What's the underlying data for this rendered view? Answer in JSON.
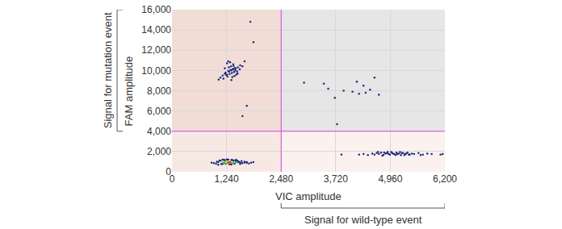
{
  "chart_data": {
    "type": "scatter",
    "x_label": "VIC amplitude",
    "y_label": "FAM amplitude",
    "annotations": [
      {
        "text": "Signal for mutation event",
        "axis": "y",
        "from": 4000,
        "to": 16000
      },
      {
        "text": "Signal for wild-type event",
        "axis": "x",
        "from": 2480,
        "to": 6200
      }
    ],
    "thresholds": {
      "x": 2480,
      "y": 4000
    },
    "xlim": [
      0,
      6200
    ],
    "ylim": [
      0,
      16000
    ],
    "xticks": [
      0,
      {
        "value": 1240,
        "label": "1,240"
      },
      {
        "value": 2480,
        "label": "2,480"
      },
      {
        "value": 3720,
        "label": "3,720"
      },
      {
        "value": 4960,
        "label": "4,960"
      },
      {
        "value": 6200,
        "label": "6,200"
      }
    ],
    "yticks": [
      0,
      {
        "value": 2000,
        "label": "2,000"
      },
      {
        "value": 4000,
        "label": "4,000"
      },
      {
        "value": 6000,
        "label": "6,000"
      },
      {
        "value": 8000,
        "label": "8,000"
      },
      {
        "value": 10000,
        "label": "10,000"
      },
      {
        "value": 12000,
        "label": "12,000"
      },
      {
        "value": 14000,
        "label": "14,000"
      },
      {
        "value": 16000,
        "label": "16,000"
      }
    ],
    "grid": true,
    "marker": "circle",
    "series": [
      {
        "color": "#1f2a80",
        "x": [
          1100,
          1150,
          1200,
          1250,
          1300,
          1350,
          1400,
          1450,
          1500,
          1550,
          1220,
          1280,
          1330,
          1380,
          1430,
          1480,
          1260,
          1310,
          1360,
          1410,
          1170,
          1230,
          1290,
          1340,
          1390,
          1440,
          1490,
          1540,
          1320,
          1370,
          1420,
          1200,
          1250,
          1600,
          1060,
          1650,
          1460,
          1350,
          1280,
          1400
        ],
        "y": [
          9300,
          9500,
          9700,
          9600,
          9900,
          10000,
          10100,
          10200,
          10300,
          10500,
          9800,
          9950,
          10050,
          10150,
          10250,
          9900,
          9400,
          9650,
          9750,
          9850,
          9200,
          9550,
          10300,
          10400,
          10600,
          10000,
          9700,
          10100,
          10800,
          9350,
          9450,
          10200,
          10700,
          10400,
          9100,
          10900,
          9600,
          9050,
          10900,
          10450
        ]
      },
      {
        "color": "#1f2a80",
        "x": [
          950,
          1000,
          1050,
          1100,
          1150,
          1200,
          1250,
          1300,
          1350,
          1400,
          1450,
          1500,
          1550,
          1600,
          1650,
          1700,
          1750,
          1800,
          1020,
          1080,
          1120,
          1180,
          1220,
          1280,
          1320,
          1380,
          1420,
          1480,
          1520,
          1580,
          1050,
          1150,
          1350,
          1450,
          1550,
          1250,
          1650,
          1700,
          900,
          1850
        ],
        "y": [
          850,
          800,
          950,
          1100,
          780,
          1150,
          1200,
          760,
          1180,
          1100,
          1050,
          950,
          900,
          850,
          920,
          880,
          820,
          900,
          1000,
          1120,
          760,
          1180,
          790,
          1190,
          770,
          1150,
          800,
          1120,
          1000,
          1050,
          700,
          1200,
          720,
          1180,
          780,
          1220,
          1000,
          960,
          900,
          950
        ]
      },
      {
        "color": "#2fbf4f",
        "x": [
          1150,
          1200,
          1250,
          1300,
          1350,
          1400,
          1220,
          1280,
          1330,
          1380,
          1180,
          1450
        ],
        "y": [
          900,
          950,
          880,
          920,
          950,
          880,
          1000,
          850,
          1000,
          860,
          850,
          930
        ]
      },
      {
        "color": "#f2e030",
        "x": [
          1230,
          1270,
          1310,
          1350,
          1290
        ],
        "y": [
          920,
          960,
          900,
          930,
          880
        ]
      },
      {
        "color": "#e8342a",
        "x": [
          1270,
          1300,
          1330
        ],
        "y": [
          920,
          930,
          910
        ]
      },
      {
        "color": "#1f2a80",
        "x": [
          4250,
          4350,
          4450,
          4550,
          4600,
          4650,
          4700,
          4750,
          4800,
          4850,
          4900,
          4950,
          5000,
          5050,
          5100,
          5150,
          5200,
          5250,
          5300,
          5350,
          5400,
          5450,
          5500,
          5600,
          5700,
          5800,
          5900,
          6100,
          4680,
          4780,
          4880,
          4980,
          5080,
          5180,
          5280,
          5380,
          4920,
          5020,
          5120,
          5220,
          4820,
          5320,
          3850,
          6150,
          5650
        ],
        "y": [
          1700,
          1750,
          1650,
          1800,
          1700,
          1850,
          1750,
          1900,
          1650,
          1800,
          1950,
          1700,
          1850,
          1750,
          1900,
          1800,
          1650,
          1850,
          1750,
          1900,
          1700,
          1800,
          1750,
          1850,
          1700,
          1800,
          1750,
          1700,
          1950,
          1600,
          1850,
          1950,
          1650,
          1950,
          1650,
          1700,
          1750,
          1800,
          1750,
          1850,
          1900,
          1800,
          1700,
          1750,
          1650
        ]
      },
      {
        "color": "#1f2a80",
        "x": [
          3000,
          3450,
          3550,
          3900,
          4100,
          4250,
          4350,
          4500,
          4600,
          4700,
          4200,
          4400,
          3700,
          1780,
          1850,
          1600,
          1700,
          3750
        ],
        "y": [
          8800,
          8700,
          8200,
          8000,
          7900,
          7700,
          8500,
          8100,
          9300,
          7600,
          8900,
          7800,
          7300,
          14800,
          12800,
          5500,
          6500,
          4700
        ]
      }
    ]
  }
}
